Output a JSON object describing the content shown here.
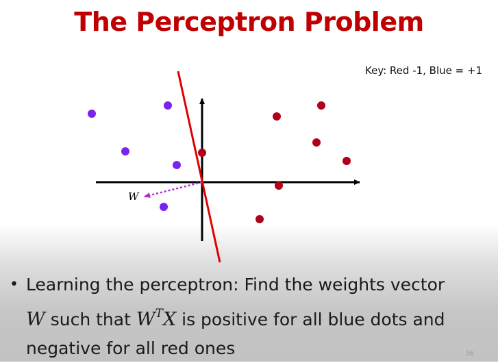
{
  "slide": {
    "title": "The Perceptron Problem",
    "key_text": "Key:  Red -1, Blue = +1",
    "vector_label": "W",
    "bullet": {
      "part1": "Learning the perceptron:  Find the weights vector",
      "var_w": "W",
      "part2": " such that ",
      "wtx_w": "W",
      "wtx_sup": "T",
      "wtx_x": "X",
      "part3": " is positive for all blue dots and",
      "line2": "negative for all red ones"
    },
    "slide_number": "36"
  },
  "colors": {
    "title": "#c00000",
    "blue_dot": "#7a22f0",
    "red_dot": "#b0001a",
    "separator": "#e00000",
    "vector": "#b22ad0"
  }
}
